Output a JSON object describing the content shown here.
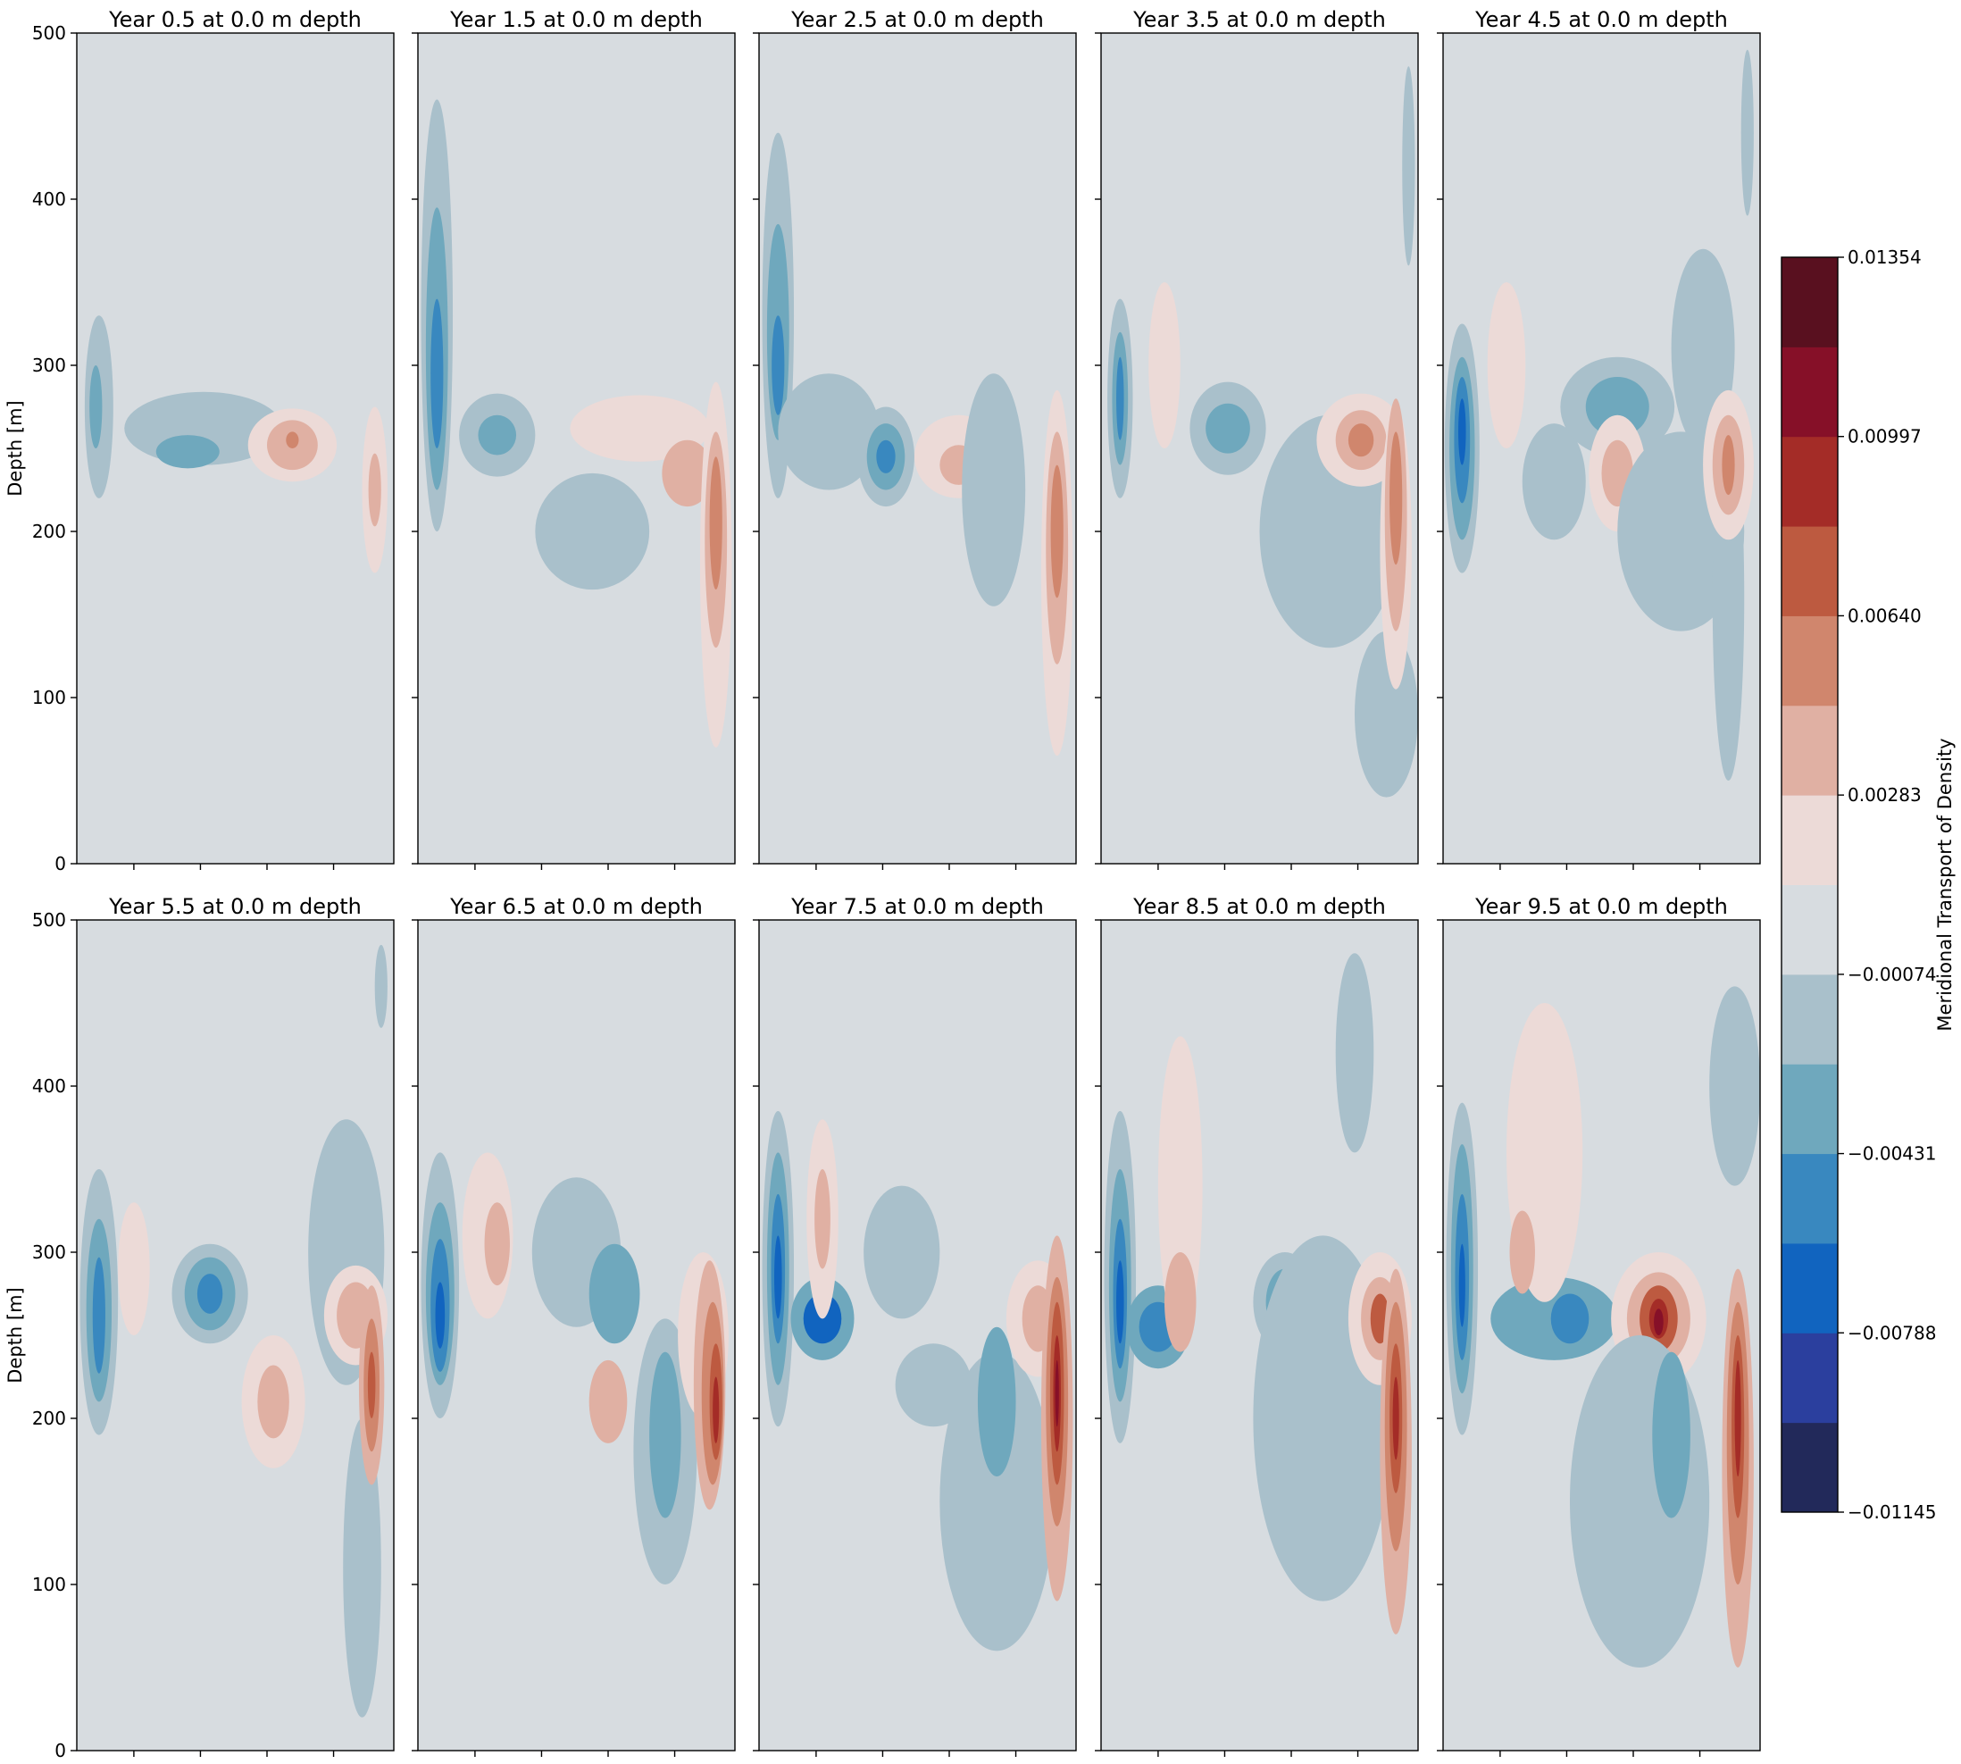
{
  "chart_data": {
    "type": "heatmap",
    "subtype": "filled contour panels",
    "layout": {
      "rows": 2,
      "cols": 5
    },
    "ylabel": "Depth [m]",
    "ylim": [
      0,
      500
    ],
    "yticks": [
      "0",
      "100",
      "200",
      "300",
      "400",
      "500"
    ],
    "x_tick_labels_shown": false,
    "panels": [
      {
        "title": "Year 0.5 at 0.0 m depth"
      },
      {
        "title": "Year 1.5 at 0.0 m depth"
      },
      {
        "title": "Year 2.5 at 0.0 m depth"
      },
      {
        "title": "Year 3.5 at 0.0 m depth"
      },
      {
        "title": "Year 4.5 at 0.0 m depth"
      },
      {
        "title": "Year 5.5 at 0.0 m depth"
      },
      {
        "title": "Year 6.5 at 0.0 m depth"
      },
      {
        "title": "Year 7.5 at 0.0 m depth"
      },
      {
        "title": "Year 8.5 at 0.0 m depth"
      },
      {
        "title": "Year 9.5 at 0.0 m depth"
      }
    ],
    "colorbar": {
      "label": "Meridional Transport of Density",
      "range": [
        -0.01145,
        0.01354
      ],
      "tick_labels": [
        "−0.01145",
        "−0.00788",
        "−0.00431",
        "−0.00074",
        "0.00283",
        "0.00640",
        "0.00997",
        "0.01354"
      ],
      "colors": [
        "#22295a",
        "#2b3f9e",
        "#1164bf",
        "#3988bf",
        "#6fa8bd",
        "#a9c0cb",
        "#d7dce0",
        "#ecdad7",
        "#e0b0a3",
        "#d0866d",
        "#bd5a40",
        "#a42c27",
        "#861028",
        "#59101f"
      ]
    },
    "colormap": "diverging blue-grey-red (balance)"
  }
}
